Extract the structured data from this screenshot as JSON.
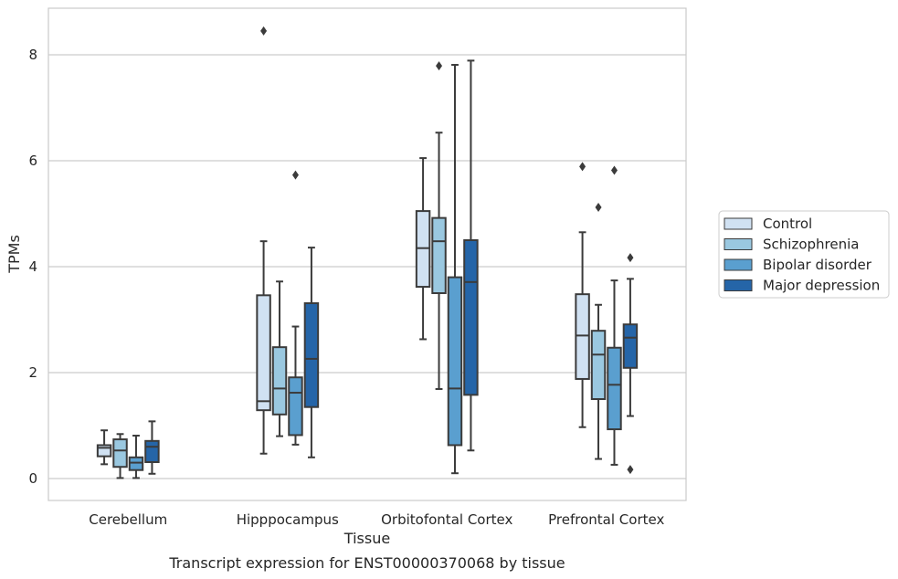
{
  "chart_data": {
    "type": "box",
    "xlabel": "Tissue",
    "ylabel": "TPMs",
    "caption": "Transcript expression for ENST00000370068 by tissue",
    "ylim": [
      -0.4,
      8.9
    ],
    "yticks": [
      0,
      2,
      4,
      6,
      8
    ],
    "grid": "horizontal",
    "legend_position": "right",
    "categories": [
      "Cerebellum",
      "Hipppocampus",
      "Orbitofontal Cortex",
      "Prefrontal Cortex"
    ],
    "series": [
      {
        "name": "Control",
        "color": "#d0e1f2",
        "boxes": [
          {
            "whislo": 0.27,
            "q1": 0.42,
            "med": 0.58,
            "q3": 0.63,
            "whishi": 0.91,
            "fliers": []
          },
          {
            "whislo": 0.47,
            "q1": 1.29,
            "med": 1.46,
            "q3": 3.46,
            "whishi": 4.48,
            "fliers": [
              8.45
            ]
          },
          {
            "whislo": 2.63,
            "q1": 3.62,
            "med": 4.35,
            "q3": 5.05,
            "whishi": 6.05,
            "fliers": []
          },
          {
            "whislo": 0.97,
            "q1": 1.88,
            "med": 2.7,
            "q3": 3.48,
            "whishi": 4.65,
            "fliers": [
              5.89
            ]
          }
        ]
      },
      {
        "name": "Schizophrenia",
        "color": "#9ac8e0",
        "boxes": [
          {
            "whislo": 0.01,
            "q1": 0.22,
            "med": 0.53,
            "q3": 0.74,
            "whishi": 0.84,
            "fliers": []
          },
          {
            "whislo": 0.8,
            "q1": 1.21,
            "med": 1.7,
            "q3": 2.48,
            "whishi": 3.72,
            "fliers": []
          },
          {
            "whislo": 1.69,
            "q1": 3.5,
            "med": 4.48,
            "q3": 4.92,
            "whishi": 6.53,
            "fliers": [
              7.79
            ]
          },
          {
            "whislo": 0.37,
            "q1": 1.5,
            "med": 2.34,
            "q3": 2.79,
            "whishi": 3.28,
            "fliers": [
              5.12
            ]
          }
        ]
      },
      {
        "name": "Bipolar disorder",
        "color": "#5a9fcf",
        "boxes": [
          {
            "whislo": 0.01,
            "q1": 0.16,
            "med": 0.3,
            "q3": 0.4,
            "whishi": 0.81,
            "fliers": []
          },
          {
            "whislo": 0.64,
            "q1": 0.82,
            "med": 1.62,
            "q3": 1.91,
            "whishi": 2.87,
            "fliers": [
              5.73
            ]
          },
          {
            "whislo": 0.1,
            "q1": 0.63,
            "med": 1.7,
            "q3": 3.8,
            "whishi": 7.81,
            "fliers": []
          },
          {
            "whislo": 0.26,
            "q1": 0.93,
            "med": 1.77,
            "q3": 2.47,
            "whishi": 3.74,
            "fliers": [
              5.82
            ]
          }
        ]
      },
      {
        "name": "Major depression",
        "color": "#2565a8",
        "boxes": [
          {
            "whislo": 0.09,
            "q1": 0.31,
            "med": 0.6,
            "q3": 0.71,
            "whishi": 1.08,
            "fliers": []
          },
          {
            "whislo": 0.4,
            "q1": 1.35,
            "med": 2.26,
            "q3": 3.31,
            "whishi": 4.36,
            "fliers": []
          },
          {
            "whislo": 0.53,
            "q1": 1.58,
            "med": 3.71,
            "q3": 4.5,
            "whishi": 7.89,
            "fliers": []
          },
          {
            "whislo": 1.18,
            "q1": 2.09,
            "med": 2.66,
            "q3": 2.91,
            "whishi": 3.77,
            "fliers": [
              4.17,
              0.17
            ]
          }
        ]
      }
    ]
  }
}
